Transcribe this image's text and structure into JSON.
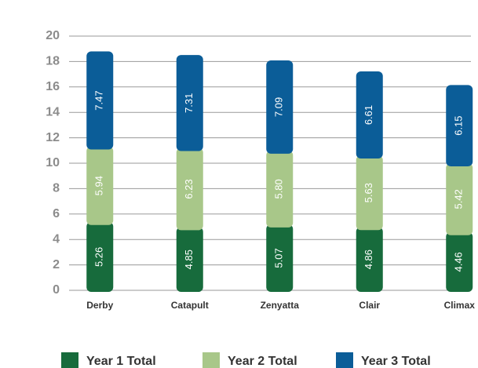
{
  "chart_data": {
    "type": "stacked_bar",
    "categories": [
      "Derby",
      "Catapult",
      "Zenyatta",
      "Clair",
      "Climax"
    ],
    "series": [
      {
        "name": "Year 1 Total",
        "color": "#176b3c",
        "values": [
          5.26,
          4.85,
          5.07,
          4.86,
          4.46
        ],
        "value_labels": [
          "5.26",
          "4.85",
          "5.07",
          "4.86",
          "4.46"
        ]
      },
      {
        "name": "Year 2 Total",
        "color": "#a8c789",
        "values": [
          5.94,
          6.23,
          5.8,
          5.63,
          5.42
        ],
        "value_labels": [
          "5.94",
          "6.23",
          "5.80",
          "5.63",
          "5.42"
        ]
      },
      {
        "name": "Year 3 Total",
        "color": "#0b5d98",
        "values": [
          7.47,
          7.31,
          7.09,
          6.61,
          6.15
        ],
        "value_labels": [
          "7.47",
          "7.31",
          "7.09",
          "6.61",
          "6.15"
        ]
      }
    ],
    "ylim": [
      0,
      20
    ],
    "yticks": [
      0,
      2,
      4,
      6,
      8,
      10,
      12,
      14,
      16,
      18,
      20
    ],
    "grid": true,
    "legend": "bottom"
  }
}
